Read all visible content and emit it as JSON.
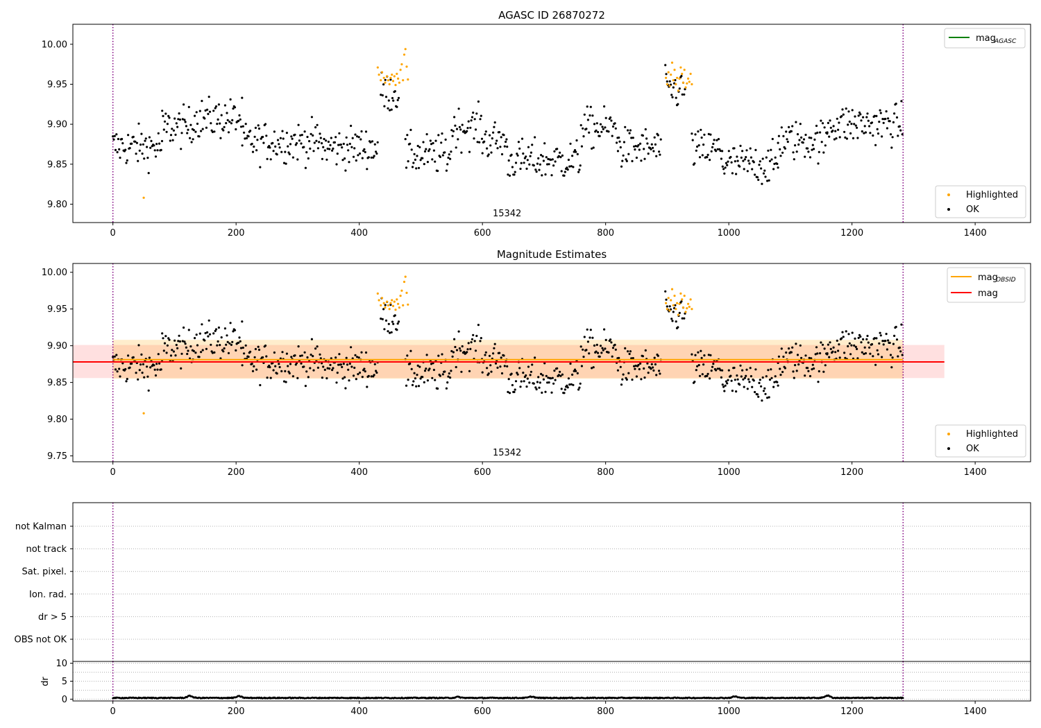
{
  "chart_data": [
    {
      "type": "scatter",
      "title": "AGASC ID 26870272",
      "xlim": [
        -65,
        1490
      ],
      "ylim": [
        9.777,
        10.025
      ],
      "xticks": [
        0,
        200,
        400,
        600,
        800,
        1000,
        1200,
        1400
      ],
      "yticks": [
        9.8,
        9.85,
        9.9,
        9.95,
        10.0
      ],
      "obsid_label": "15342",
      "obsid_label_x": 640,
      "vlines_x": [
        0,
        1283
      ],
      "legend_lines": [
        {
          "label": "mag",
          "sub": "AGASC",
          "color": "#008000"
        }
      ],
      "legend_points": [
        {
          "label": "Highlighted",
          "color": "#ffa500"
        },
        {
          "label": "OK",
          "color": "#000000"
        }
      ],
      "series": [
        {
          "name": "Highlighted",
          "color": "#ffa500",
          "points": [
            [
              50,
              9.808
            ],
            [
              430,
              9.971
            ],
            [
              432,
              9.962
            ],
            [
              435,
              9.955
            ],
            [
              437,
              9.965
            ],
            [
              440,
              9.958
            ],
            [
              442,
              9.952
            ],
            [
              445,
              9.96
            ],
            [
              447,
              9.955
            ],
            [
              449,
              9.95
            ],
            [
              451,
              9.958
            ],
            [
              453,
              9.962
            ],
            [
              455,
              9.954
            ],
            [
              457,
              9.96
            ],
            [
              459,
              9.949
            ],
            [
              461,
              9.963
            ],
            [
              463,
              9.957
            ],
            [
              465,
              9.952
            ],
            [
              467,
              9.968
            ],
            [
              469,
              9.975
            ],
            [
              471,
              9.955
            ],
            [
              473,
              9.987
            ],
            [
              475,
              9.994
            ],
            [
              477,
              9.972
            ],
            [
              479,
              9.956
            ],
            [
              898,
              9.958
            ],
            [
              900,
              9.95
            ],
            [
              902,
              9.965
            ],
            [
              904,
              9.948
            ],
            [
              906,
              9.962
            ],
            [
              908,
              9.977
            ],
            [
              910,
              9.955
            ],
            [
              912,
              9.968
            ],
            [
              914,
              9.95
            ],
            [
              916,
              9.958
            ],
            [
              918,
              9.942
            ],
            [
              920,
              9.957
            ],
            [
              922,
              9.971
            ],
            [
              924,
              9.963
            ],
            [
              926,
              9.952
            ],
            [
              928,
              9.968
            ],
            [
              930,
              9.946
            ],
            [
              932,
              9.951
            ],
            [
              934,
              9.957
            ],
            [
              936,
              9.953
            ],
            [
              938,
              9.963
            ],
            [
              940,
              9.95
            ]
          ]
        },
        {
          "name": "OK",
          "color": "#000000",
          "segments": [
            [
              0,
              80,
              9.872
            ],
            [
              80,
              130,
              9.896
            ],
            [
              130,
              210,
              9.907
            ],
            [
              210,
              340,
              9.878
            ],
            [
              340,
              430,
              9.871
            ],
            [
              435,
              465,
              9.94
            ],
            [
              475,
              550,
              9.862
            ],
            [
              550,
              600,
              9.896
            ],
            [
              600,
              640,
              9.88
            ],
            [
              640,
              760,
              9.855
            ],
            [
              760,
              820,
              9.895
            ],
            [
              820,
              890,
              9.87
            ],
            [
              897,
              930,
              9.943
            ],
            [
              940,
              990,
              9.868
            ],
            [
              990,
              1080,
              9.85
            ],
            [
              1080,
              1160,
              9.88
            ],
            [
              1160,
              1283,
              9.9
            ]
          ]
        }
      ]
    },
    {
      "type": "scatter",
      "title": "Magnitude Estimates",
      "xlim": [
        -65,
        1490
      ],
      "ylim": [
        9.742,
        10.012
      ],
      "xticks": [
        0,
        200,
        400,
        600,
        800,
        1000,
        1200,
        1400
      ],
      "yticks": [
        9.75,
        9.8,
        9.85,
        9.9,
        9.95,
        10.0
      ],
      "obsid_label": "15342",
      "obsid_label_x": 640,
      "vlines_x": [
        0,
        1283
      ],
      "legend_lines": [
        {
          "label": "mag",
          "sub": "OBSID",
          "color": "#ffa500"
        },
        {
          "label": "mag",
          "sub": "",
          "color": "#ff0000"
        }
      ],
      "legend_points": [
        {
          "label": "Highlighted",
          "color": "#ffa500"
        },
        {
          "label": "OK",
          "color": "#000000"
        }
      ],
      "mag_obsid": {
        "value": 9.881,
        "x": [
          0,
          1283
        ],
        "band": [
          9.855,
          9.908
        ],
        "color": "#ffa500"
      },
      "mag": {
        "value": 9.878,
        "x": [
          -65,
          1350
        ],
        "band": [
          9.856,
          9.901
        ],
        "color": "#ff0000"
      }
    },
    {
      "type": "scatter",
      "xlim": [
        -65,
        1490
      ],
      "categories": [
        "not Kalman",
        "not track",
        "Sat. pixel.",
        "Ion. rad.",
        "dr > 5",
        "OBS not OK"
      ],
      "vlines_x": [
        0,
        1283
      ]
    },
    {
      "type": "line",
      "ylabel": "dr",
      "xlim": [
        -65,
        1490
      ],
      "ylim": [
        -0.5,
        10.5
      ],
      "xticks": [
        0,
        200,
        400,
        600,
        800,
        1000,
        1200,
        1400
      ],
      "yticks": [
        0,
        5,
        10
      ],
      "vlines_x": [
        0,
        1283
      ],
      "series": [
        {
          "name": "dr",
          "color": "#000000",
          "x_range": [
            0,
            1283
          ],
          "mean": 0.35,
          "bumps": [
            [
              125,
              0.9
            ],
            [
              205,
              0.8
            ],
            [
              560,
              0.6
            ],
            [
              680,
              0.7
            ],
            [
              1010,
              0.75
            ],
            [
              1160,
              1.0
            ]
          ]
        }
      ]
    }
  ]
}
